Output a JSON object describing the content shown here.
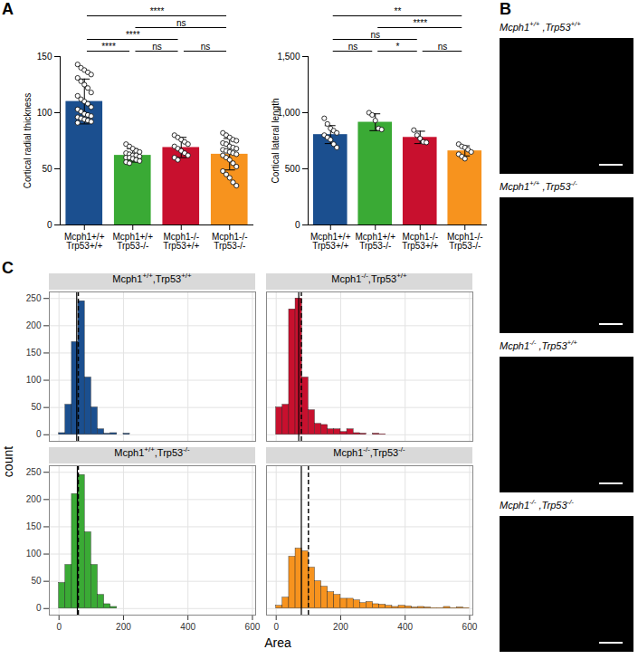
{
  "chart_data": [
    {
      "panel": "A",
      "type": "bar",
      "categories": [
        "Mcph1+/+\nTrp53+/+",
        "Mcph1+/+\nTrp53-/-",
        "Mcph1-/-\nTrp53+/+",
        "Mcph1-/-\nTrp53-/-"
      ],
      "values": [
        110,
        62,
        69,
        63
      ],
      "errors": [
        20,
        6,
        9,
        14
      ],
      "points": [
        [
          143,
          140,
          138,
          136,
          134,
          131,
          128,
          125,
          122,
          118,
          115,
          112,
          110,
          108,
          105,
          103,
          101,
          99,
          98,
          97,
          96,
          95,
          94,
          93,
          92,
          91
        ],
        [
          72,
          70,
          68,
          66,
          65,
          64,
          63,
          62,
          62,
          61,
          60,
          60,
          59,
          58,
          57,
          56,
          55
        ],
        [
          80,
          78,
          76,
          74,
          72,
          70,
          68,
          66,
          64,
          62,
          60,
          58
        ],
        [
          82,
          80,
          78,
          76,
          75,
          73,
          72,
          70,
          69,
          68,
          67,
          66,
          65,
          64,
          63,
          62,
          60,
          58,
          55,
          52,
          48,
          45,
          42,
          38,
          35
        ]
      ],
      "colors": [
        "#1b4f8f",
        "#3aaa35",
        "#c8102e",
        "#f7931e"
      ],
      "y_label": "Cortical radial thickness",
      "ylim": [
        0,
        150
      ],
      "yticks": [
        0,
        50,
        100,
        150
      ],
      "comparisons": [
        {
          "pair": [
            0,
            1
          ],
          "label": "****"
        },
        {
          "pair": [
            1,
            2
          ],
          "label": "ns"
        },
        {
          "pair": [
            2,
            3
          ],
          "label": "ns"
        },
        {
          "pair": [
            0,
            2
          ],
          "label": "****"
        },
        {
          "pair": [
            1,
            3
          ],
          "label": "ns"
        },
        {
          "pair": [
            0,
            3
          ],
          "label": "****"
        }
      ]
    },
    {
      "type": "bar",
      "categories": [
        "Mcph1+/+\nTrp53+/+",
        "Mcph1+/+\nTrp53-/-",
        "Mcph1-/-\nTrp53+/+",
        "Mcph1-/-\nTrp53-/-"
      ],
      "values": [
        805,
        915,
        780,
        660
      ],
      "errors": [
        80,
        75,
        55,
        45
      ],
      "points": [
        [
          950,
          900,
          860,
          840,
          820,
          800,
          780,
          760,
          720,
          690
        ],
        [
          1000,
          980,
          930,
          860,
          850
        ],
        [
          845,
          800,
          770,
          740,
          735
        ],
        [
          720,
          700,
          690,
          670,
          650,
          630,
          610,
          590
        ]
      ],
      "colors": [
        "#1b4f8f",
        "#3aaa35",
        "#c8102e",
        "#f7931e"
      ],
      "y_label": "Cortical lateral length",
      "ylim": [
        0,
        1500
      ],
      "yticks": [
        0,
        500,
        1000,
        1500
      ],
      "comparisons": [
        {
          "pair": [
            0,
            1
          ],
          "label": "ns"
        },
        {
          "pair": [
            1,
            2
          ],
          "label": "*"
        },
        {
          "pair": [
            2,
            3
          ],
          "label": "ns"
        },
        {
          "pair": [
            0,
            2
          ],
          "label": "ns"
        },
        {
          "pair": [
            1,
            3
          ],
          "label": "****"
        },
        {
          "pair": [
            0,
            3
          ],
          "label": "**"
        }
      ]
    },
    {
      "panel": "B",
      "type": "image",
      "titles": [
        "Mcph1+/+ ,Trp53+/+",
        "Mcph1+/+ ,Trp53-/-",
        "Mcph1-/- ,Trp53+/+",
        "Mcph1-/- ,Trp53-/-"
      ]
    },
    {
      "panel": "C",
      "type": "histogram",
      "x_label": "Area",
      "y_label": "count",
      "xlim": [
        -30,
        610
      ],
      "xticks": [
        0,
        200,
        400,
        600
      ],
      "ylim": [
        -12,
        262
      ],
      "yticks": [
        0,
        50,
        100,
        150,
        200,
        250
      ],
      "grid": true,
      "bins": [
        0,
        20,
        40,
        60,
        80,
        100,
        120,
        140,
        160,
        180,
        200,
        220,
        240,
        260,
        280,
        300,
        320,
        340,
        360,
        380,
        400,
        420,
        440,
        460,
        480,
        500,
        520,
        540,
        560,
        580,
        600
      ],
      "series": [
        {
          "name": "Mcph1+/+,Trp53+/+",
          "color": "#1b4f8f",
          "values": [
            3,
            55,
            170,
            245,
            105,
            50,
            10,
            2,
            3,
            0,
            2,
            0,
            0,
            0,
            0,
            0,
            0,
            0,
            0,
            0,
            0,
            0,
            0,
            0,
            0,
            0,
            0,
            0,
            0,
            0
          ],
          "vlines": [
            {
              "value": 55,
              "line_style": "solid"
            },
            {
              "value": 60,
              "line_style": "dashed"
            }
          ]
        },
        {
          "name": "Mcph1-/-,Trp53+/+",
          "color": "#c8102e",
          "values": [
            50,
            55,
            230,
            250,
            105,
            45,
            20,
            18,
            10,
            10,
            5,
            10,
            3,
            2,
            0,
            2,
            1,
            0,
            0,
            0,
            0,
            0,
            0,
            0,
            0,
            0,
            0,
            0,
            0,
            0
          ],
          "vlines": [
            {
              "value": 70,
              "line_style": "solid"
            },
            {
              "value": 78,
              "line_style": "dashed"
            }
          ]
        },
        {
          "name": "Mcph1+/+,Trp53-/-",
          "color": "#3aaa35",
          "values": [
            47,
            80,
            210,
            245,
            140,
            80,
            25,
            8,
            3,
            0,
            0,
            0,
            0,
            0,
            0,
            0,
            0,
            0,
            0,
            0,
            0,
            0,
            0,
            0,
            0,
            0,
            0,
            0,
            0,
            0
          ],
          "vlines": [
            {
              "value": 57,
              "line_style": "solid"
            },
            {
              "value": 60,
              "line_style": "dashed"
            }
          ]
        },
        {
          "name": "Mcph1-/-,Trp53-/-",
          "color": "#f7931e",
          "values": [
            5,
            20,
            95,
            110,
            105,
            75,
            50,
            40,
            30,
            25,
            18,
            18,
            15,
            10,
            12,
            8,
            7,
            5,
            3,
            5,
            4,
            2,
            3,
            2,
            1,
            1,
            3,
            1,
            2,
            1
          ],
          "vlines": [
            {
              "value": 78,
              "line_style": "solid"
            },
            {
              "value": 100,
              "line_style": "dashed"
            }
          ]
        }
      ]
    }
  ]
}
